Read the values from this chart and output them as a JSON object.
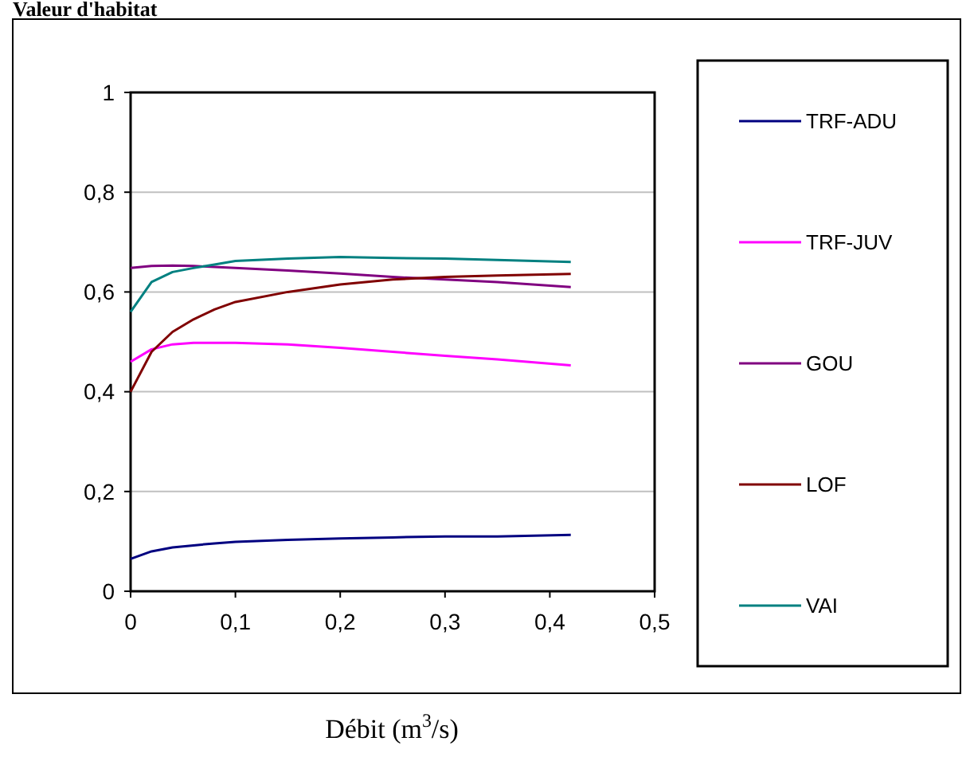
{
  "chart_data": {
    "type": "line",
    "title": "Valeur d'habitat",
    "xlabel": "Débit (m$^{3}$/s)",
    "x": [
      0,
      0.02,
      0.04,
      0.06,
      0.08,
      0.1,
      0.15,
      0.2,
      0.25,
      0.3,
      0.35,
      0.42
    ],
    "series": [
      {
        "name": "TRF-ADU",
        "color": "#000080",
        "values": [
          0.065,
          0.08,
          0.088,
          0.092,
          0.096,
          0.099,
          0.103,
          0.106,
          0.108,
          0.11,
          0.11,
          0.113
        ]
      },
      {
        "name": "TRF-JUV",
        "color": "#ff00ff",
        "values": [
          0.46,
          0.485,
          0.495,
          0.498,
          0.498,
          0.498,
          0.495,
          0.488,
          0.48,
          0.472,
          0.465,
          0.453
        ]
      },
      {
        "name": "GOU",
        "color": "#800080",
        "values": [
          0.648,
          0.652,
          0.653,
          0.652,
          0.65,
          0.648,
          0.643,
          0.637,
          0.63,
          0.625,
          0.62,
          0.61
        ]
      },
      {
        "name": "LOF",
        "color": "#800000",
        "values": [
          0.4,
          0.48,
          0.52,
          0.545,
          0.565,
          0.58,
          0.6,
          0.615,
          0.625,
          0.63,
          0.633,
          0.636
        ]
      },
      {
        "name": "VAI",
        "color": "#008080",
        "values": [
          0.56,
          0.62,
          0.64,
          0.648,
          0.655,
          0.662,
          0.667,
          0.67,
          0.668,
          0.667,
          0.664,
          0.66
        ]
      }
    ],
    "xlim": [
      0,
      0.5
    ],
    "xticks": [
      0,
      {
        "value": 0.1,
        "label": "0,1"
      },
      {
        "value": 0.2,
        "label": "0,2"
      },
      {
        "value": 0.3,
        "label": "0,3"
      },
      {
        "value": 0.4,
        "label": "0,4"
      },
      {
        "value": 0.5,
        "label": "0,5"
      }
    ],
    "ylim": [
      0,
      1
    ],
    "yticks": [
      0,
      {
        "value": 0.2,
        "label": "0,2"
      },
      {
        "value": 0.4,
        "label": "0,4"
      },
      {
        "value": 0.6,
        "label": "0,6"
      },
      {
        "value": 0.8,
        "label": "0,8"
      },
      1
    ],
    "grid": "y",
    "legend": "right",
    "marker": "none",
    "line_style": "solid"
  }
}
